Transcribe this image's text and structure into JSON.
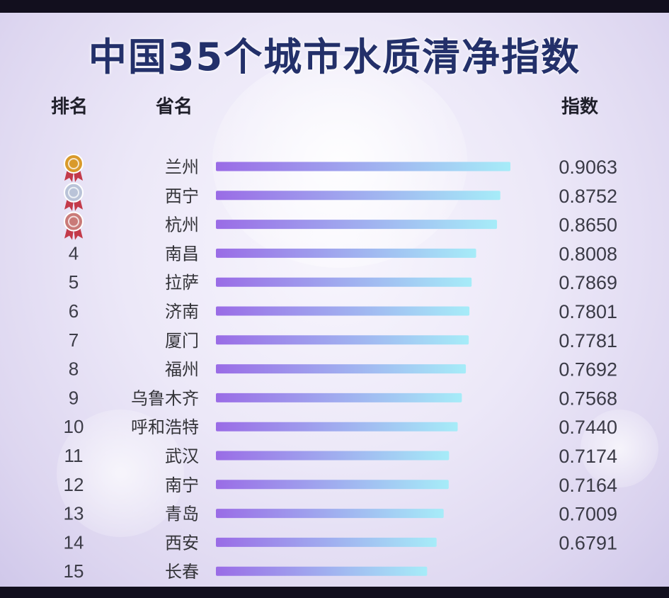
{
  "title": "中国35个城市水质清净指数",
  "headers": {
    "rank": "排名",
    "province": "省名",
    "index": "指数"
  },
  "colors": {
    "title": "#23306a",
    "bar_start": "#9a6ce6",
    "bar_end": "#a6ecf8",
    "gold_medal": "#d99a2b",
    "silver_medal": "#b9c3d8",
    "bronze_medal": "#c97a78",
    "ribbon": "#c33a4a"
  },
  "medal_icons": [
    "gold-medal-icon",
    "silver-medal-icon",
    "bronze-medal-icon"
  ],
  "chart_data": {
    "type": "bar",
    "orientation": "horizontal",
    "title": "中国35个城市水质清净指数",
    "columns": [
      "排名",
      "省名",
      "指数"
    ],
    "rows": [
      {
        "rank": "1",
        "name": "兰州",
        "value": 0.9063,
        "label": "0.9063"
      },
      {
        "rank": "2",
        "name": "西宁",
        "value": 0.8752,
        "label": "0.8752"
      },
      {
        "rank": "3",
        "name": "杭州",
        "value": 0.865,
        "label": "0.8650"
      },
      {
        "rank": "4",
        "name": "南昌",
        "value": 0.8008,
        "label": "0.8008"
      },
      {
        "rank": "5",
        "name": "拉萨",
        "value": 0.7869,
        "label": "0.7869"
      },
      {
        "rank": "6",
        "name": "济南",
        "value": 0.7801,
        "label": "0.7801"
      },
      {
        "rank": "7",
        "name": "厦门",
        "value": 0.7781,
        "label": "0.7781"
      },
      {
        "rank": "8",
        "name": "福州",
        "value": 0.7692,
        "label": "0.7692"
      },
      {
        "rank": "9",
        "name": "乌鲁木齐",
        "value": 0.7568,
        "label": "0.7568"
      },
      {
        "rank": "10",
        "name": "呼和浩特",
        "value": 0.744,
        "label": "0.7440"
      },
      {
        "rank": "11",
        "name": "武汉",
        "value": 0.7174,
        "label": "0.7174"
      },
      {
        "rank": "12",
        "name": "南宁",
        "value": 0.7164,
        "label": "0.7164"
      },
      {
        "rank": "13",
        "name": "青岛",
        "value": 0.7009,
        "label": "0.7009"
      },
      {
        "rank": "14",
        "name": "西安",
        "value": 0.6791,
        "label": "0.6791"
      },
      {
        "rank": "15",
        "name": "长春",
        "value": 0.65,
        "label": ""
      }
    ]
  }
}
